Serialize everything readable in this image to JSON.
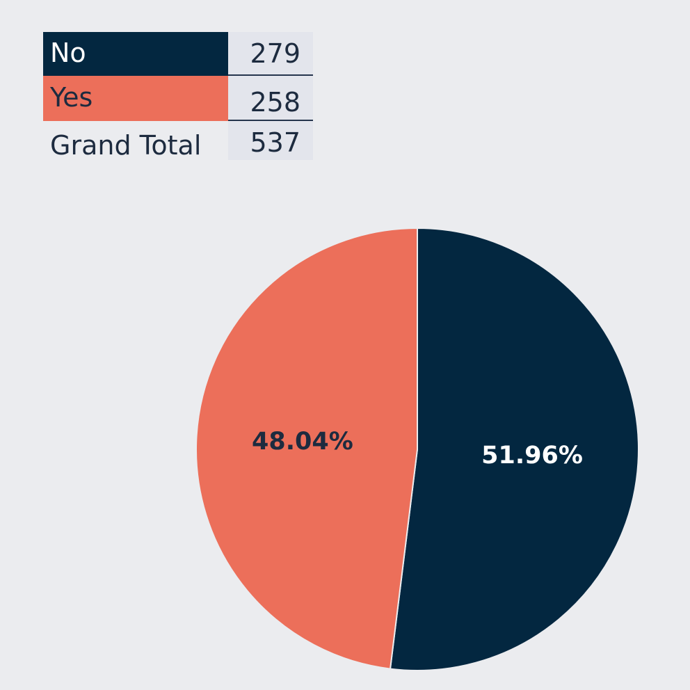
{
  "summary_table": {
    "rows": [
      {
        "label": "No",
        "value": "279",
        "color": "#032740"
      },
      {
        "label": "Yes",
        "value": "258",
        "color": "#ec6f5a"
      },
      {
        "label": "Grand Total",
        "value": "537"
      }
    ]
  },
  "chart_data": {
    "type": "pie",
    "title": "",
    "slices": [
      {
        "name": "No",
        "value": 279,
        "label": "51.96%",
        "color": "#032740",
        "label_color": "#ffffff"
      },
      {
        "name": "Yes",
        "value": 258,
        "label": "48.04%",
        "color": "#ec6f5a",
        "label_color": "#1d2b3f"
      }
    ],
    "start": "12 o'clock",
    "direction": "clockwise",
    "legend": "none"
  }
}
